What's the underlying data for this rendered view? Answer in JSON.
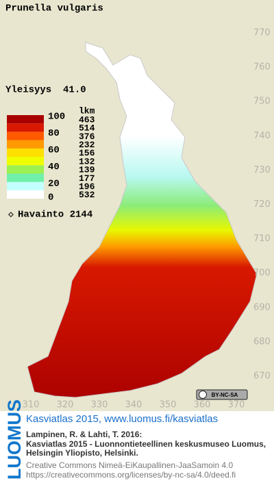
{
  "header": {
    "title": "Prunella vulgaris",
    "frequency": "Yleisyys  41.0"
  },
  "legend": {
    "scale_labels": [
      "100",
      "80",
      "60",
      "40",
      "20",
      "0"
    ],
    "count_header": "lkm",
    "counts": [
      463,
      514,
      376,
      232,
      156,
      132,
      139,
      177,
      196,
      532
    ],
    "colors": [
      "#a80000",
      "#d81800",
      "#ff5a00",
      "#ff9a00",
      "#ffe000",
      "#eeff00",
      "#9cf050",
      "#70f0a8",
      "#c4ffff",
      "#ffffff"
    ],
    "observations": "Havainto 2144"
  },
  "map": {
    "xticks": [
      310,
      320,
      330,
      340,
      350,
      360,
      370
    ],
    "yticks": [
      670,
      680,
      690,
      700,
      710,
      720,
      730,
      740,
      750,
      760,
      770
    ]
  },
  "badge": "BY-NC-SA",
  "footer": {
    "logo": "LUOMUS",
    "link": "Kasviatlas 2015, www.luomus.fi/kasviatlas",
    "citation": [
      "Lampinen, R. & Lahti, T. 2016:",
      "Kasviatlas 2015 - Luonnontieteellinen keskusmuseo Luomus,",
      "Helsingin Yliopisto, Helsinki."
    ],
    "license": [
      "Creative Commons Nimeä-EiKaupallinen-JaaSamoin 4.0",
      "https://creativecommons.org/licenses/by-nc-sa/4.0/deed.fi"
    ]
  }
}
